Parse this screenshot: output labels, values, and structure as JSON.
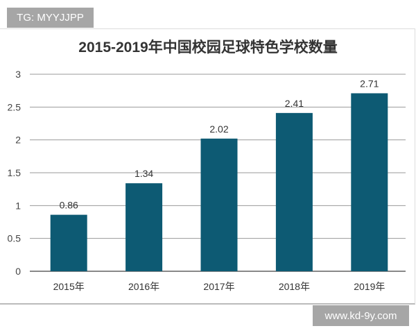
{
  "badges": {
    "top_left": "TG: MYYJJPP",
    "bottom_right": "www.kd-9y.com"
  },
  "chart_data": {
    "type": "bar",
    "title": "2015-2019年中国校园足球特色学校数量",
    "categories": [
      "2015年",
      "2016年",
      "2017年",
      "2018年",
      "2019年"
    ],
    "values": [
      0.86,
      1.34,
      2.02,
      2.41,
      2.71
    ],
    "data_labels": [
      "0.86",
      "1.34",
      "2.02",
      "2.41",
      "2.71"
    ],
    "ylim": [
      0,
      3
    ],
    "yticks": [
      "0",
      "0.5",
      "1",
      "1.5",
      "2",
      "2.5",
      "3"
    ],
    "grid": true,
    "bar_color": "#0d5a73"
  }
}
